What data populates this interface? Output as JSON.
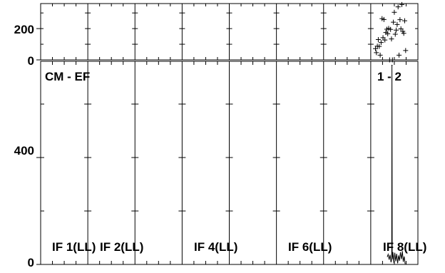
{
  "chart_data": {
    "type": "line",
    "baseline_label": "CM - EF",
    "antenna_pair": "1 - 2",
    "phase_panel": {
      "type": "scatter",
      "y_ticks": [
        "0",
        "200"
      ],
      "points": [
        [
          8.1,
          72
        ],
        [
          8.12,
          46
        ],
        [
          8.14,
          88
        ],
        [
          8.16,
          130
        ],
        [
          8.18,
          86
        ],
        [
          8.2,
          30
        ],
        [
          8.22,
          111
        ],
        [
          8.24,
          264
        ],
        [
          8.26,
          142
        ],
        [
          8.28,
          258
        ],
        [
          8.3,
          127
        ],
        [
          8.32,
          175
        ],
        [
          8.34,
          196
        ],
        [
          8.36,
          167
        ],
        [
          8.38,
          201
        ],
        [
          8.4,
          0
        ],
        [
          8.42,
          195
        ],
        [
          8.44,
          134
        ],
        [
          8.46,
          0
        ],
        [
          8.48,
          241
        ],
        [
          8.5,
          304
        ],
        [
          8.52,
          164
        ],
        [
          8.54,
          190
        ],
        [
          8.56,
          226
        ],
        [
          8.58,
          339
        ],
        [
          8.6,
          30
        ],
        [
          8.62,
          257
        ],
        [
          8.64,
          198
        ],
        [
          8.66,
          354
        ],
        [
          8.68,
          182
        ],
        [
          8.7,
          170
        ],
        [
          8.72,
          250
        ],
        [
          8.74,
          60
        ]
      ]
    },
    "amplitude_panel": {
      "type": "line",
      "y_ticks": [
        "0",
        "400"
      ],
      "peak": {
        "x": 8.45,
        "y": 745
      },
      "noise": [
        [
          8.35,
          28
        ],
        [
          8.37,
          38
        ],
        [
          8.39,
          18
        ],
        [
          8.41,
          36
        ],
        [
          8.43,
          8
        ],
        [
          8.47,
          46
        ],
        [
          8.49,
          6
        ],
        [
          8.51,
          44
        ],
        [
          8.53,
          12
        ],
        [
          8.55,
          40
        ],
        [
          8.57,
          4
        ],
        [
          8.59,
          34
        ],
        [
          8.61,
          14
        ],
        [
          8.63,
          46
        ],
        [
          8.65,
          20
        ],
        [
          8.67,
          50
        ],
        [
          8.69,
          10
        ],
        [
          8.71,
          30
        ],
        [
          8.73,
          2
        ]
      ]
    },
    "if_labels": [
      {
        "label": "IF 1(LL)",
        "channel": 1
      },
      {
        "label": "IF 2(LL)",
        "channel": 2
      },
      {
        "label": "IF 4(LL)",
        "channel": 4
      },
      {
        "label": "IF 6(LL)",
        "channel": 6
      },
      {
        "label": "IF 8(LL)",
        "channel": 8
      }
    ]
  }
}
